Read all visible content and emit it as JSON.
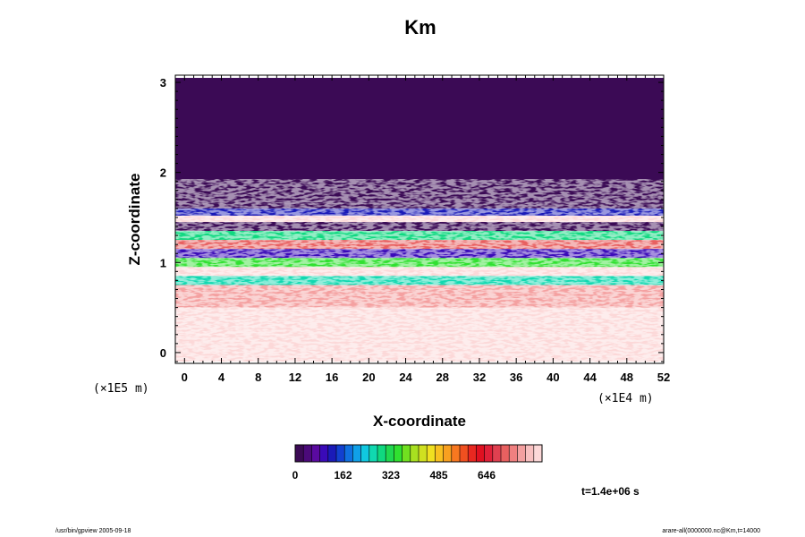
{
  "chart_data": {
    "type": "heatmap",
    "title": "Km",
    "xlabel": "X-coordinate",
    "ylabel": "Z-coordinate",
    "x_unit": "(×1E4 m)",
    "y_unit": "(×1E5 m)",
    "x_ticks": [
      "0",
      "4",
      "8",
      "12",
      "16",
      "20",
      "24",
      "28",
      "32",
      "36",
      "40",
      "44",
      "48",
      "52"
    ],
    "y_ticks": [
      "0",
      "1",
      "2",
      "3"
    ],
    "xlim": [
      -1,
      52
    ],
    "ylim": [
      -0.12,
      3.08
    ],
    "colorbar": {
      "ticks": [
        "0",
        "162",
        "323",
        "485",
        "646"
      ],
      "colors": [
        "#3b0a55",
        "#4b0a7a",
        "#5a0aa0",
        "#3a0ab8",
        "#1a1ab8",
        "#1240d0",
        "#1070e0",
        "#10a0e8",
        "#10c8e0",
        "#10d8b0",
        "#10d880",
        "#20d850",
        "#30e030",
        "#70e020",
        "#a8e020",
        "#d0e020",
        "#f0e020",
        "#f8c020",
        "#f8a020",
        "#f87820",
        "#f05020",
        "#e82820",
        "#e01020",
        "#e02038",
        "#e04050",
        "#e86060",
        "#f08080",
        "#f4a0a0",
        "#f8c0c0",
        "#fcd8d8"
      ]
    },
    "layers": [
      {
        "z": 3.05,
        "value": 0
      },
      {
        "z": 1.65,
        "value": 0
      },
      {
        "z": 1.6,
        "value": 130
      },
      {
        "z": 1.52,
        "value": 820
      },
      {
        "z": 1.45,
        "value": 0
      },
      {
        "z": 1.35,
        "value": 300
      },
      {
        "z": 1.25,
        "value": 700
      },
      {
        "z": 1.15,
        "value": 100
      },
      {
        "z": 1.05,
        "value": 350
      },
      {
        "z": 0.95,
        "value": 850
      },
      {
        "z": 0.85,
        "value": 250
      },
      {
        "z": 0.75,
        "value": 760
      },
      {
        "z": 0.5,
        "value": 830
      },
      {
        "z": 0.2,
        "value": 880
      },
      {
        "z": -0.1,
        "value": 900
      }
    ],
    "time_label": "t=1.4e+06 s"
  },
  "footer": {
    "left": "/usr/bin/gpview 2005-09-18",
    "right": "arare-all(0000000.nc@Km,t=14000"
  }
}
